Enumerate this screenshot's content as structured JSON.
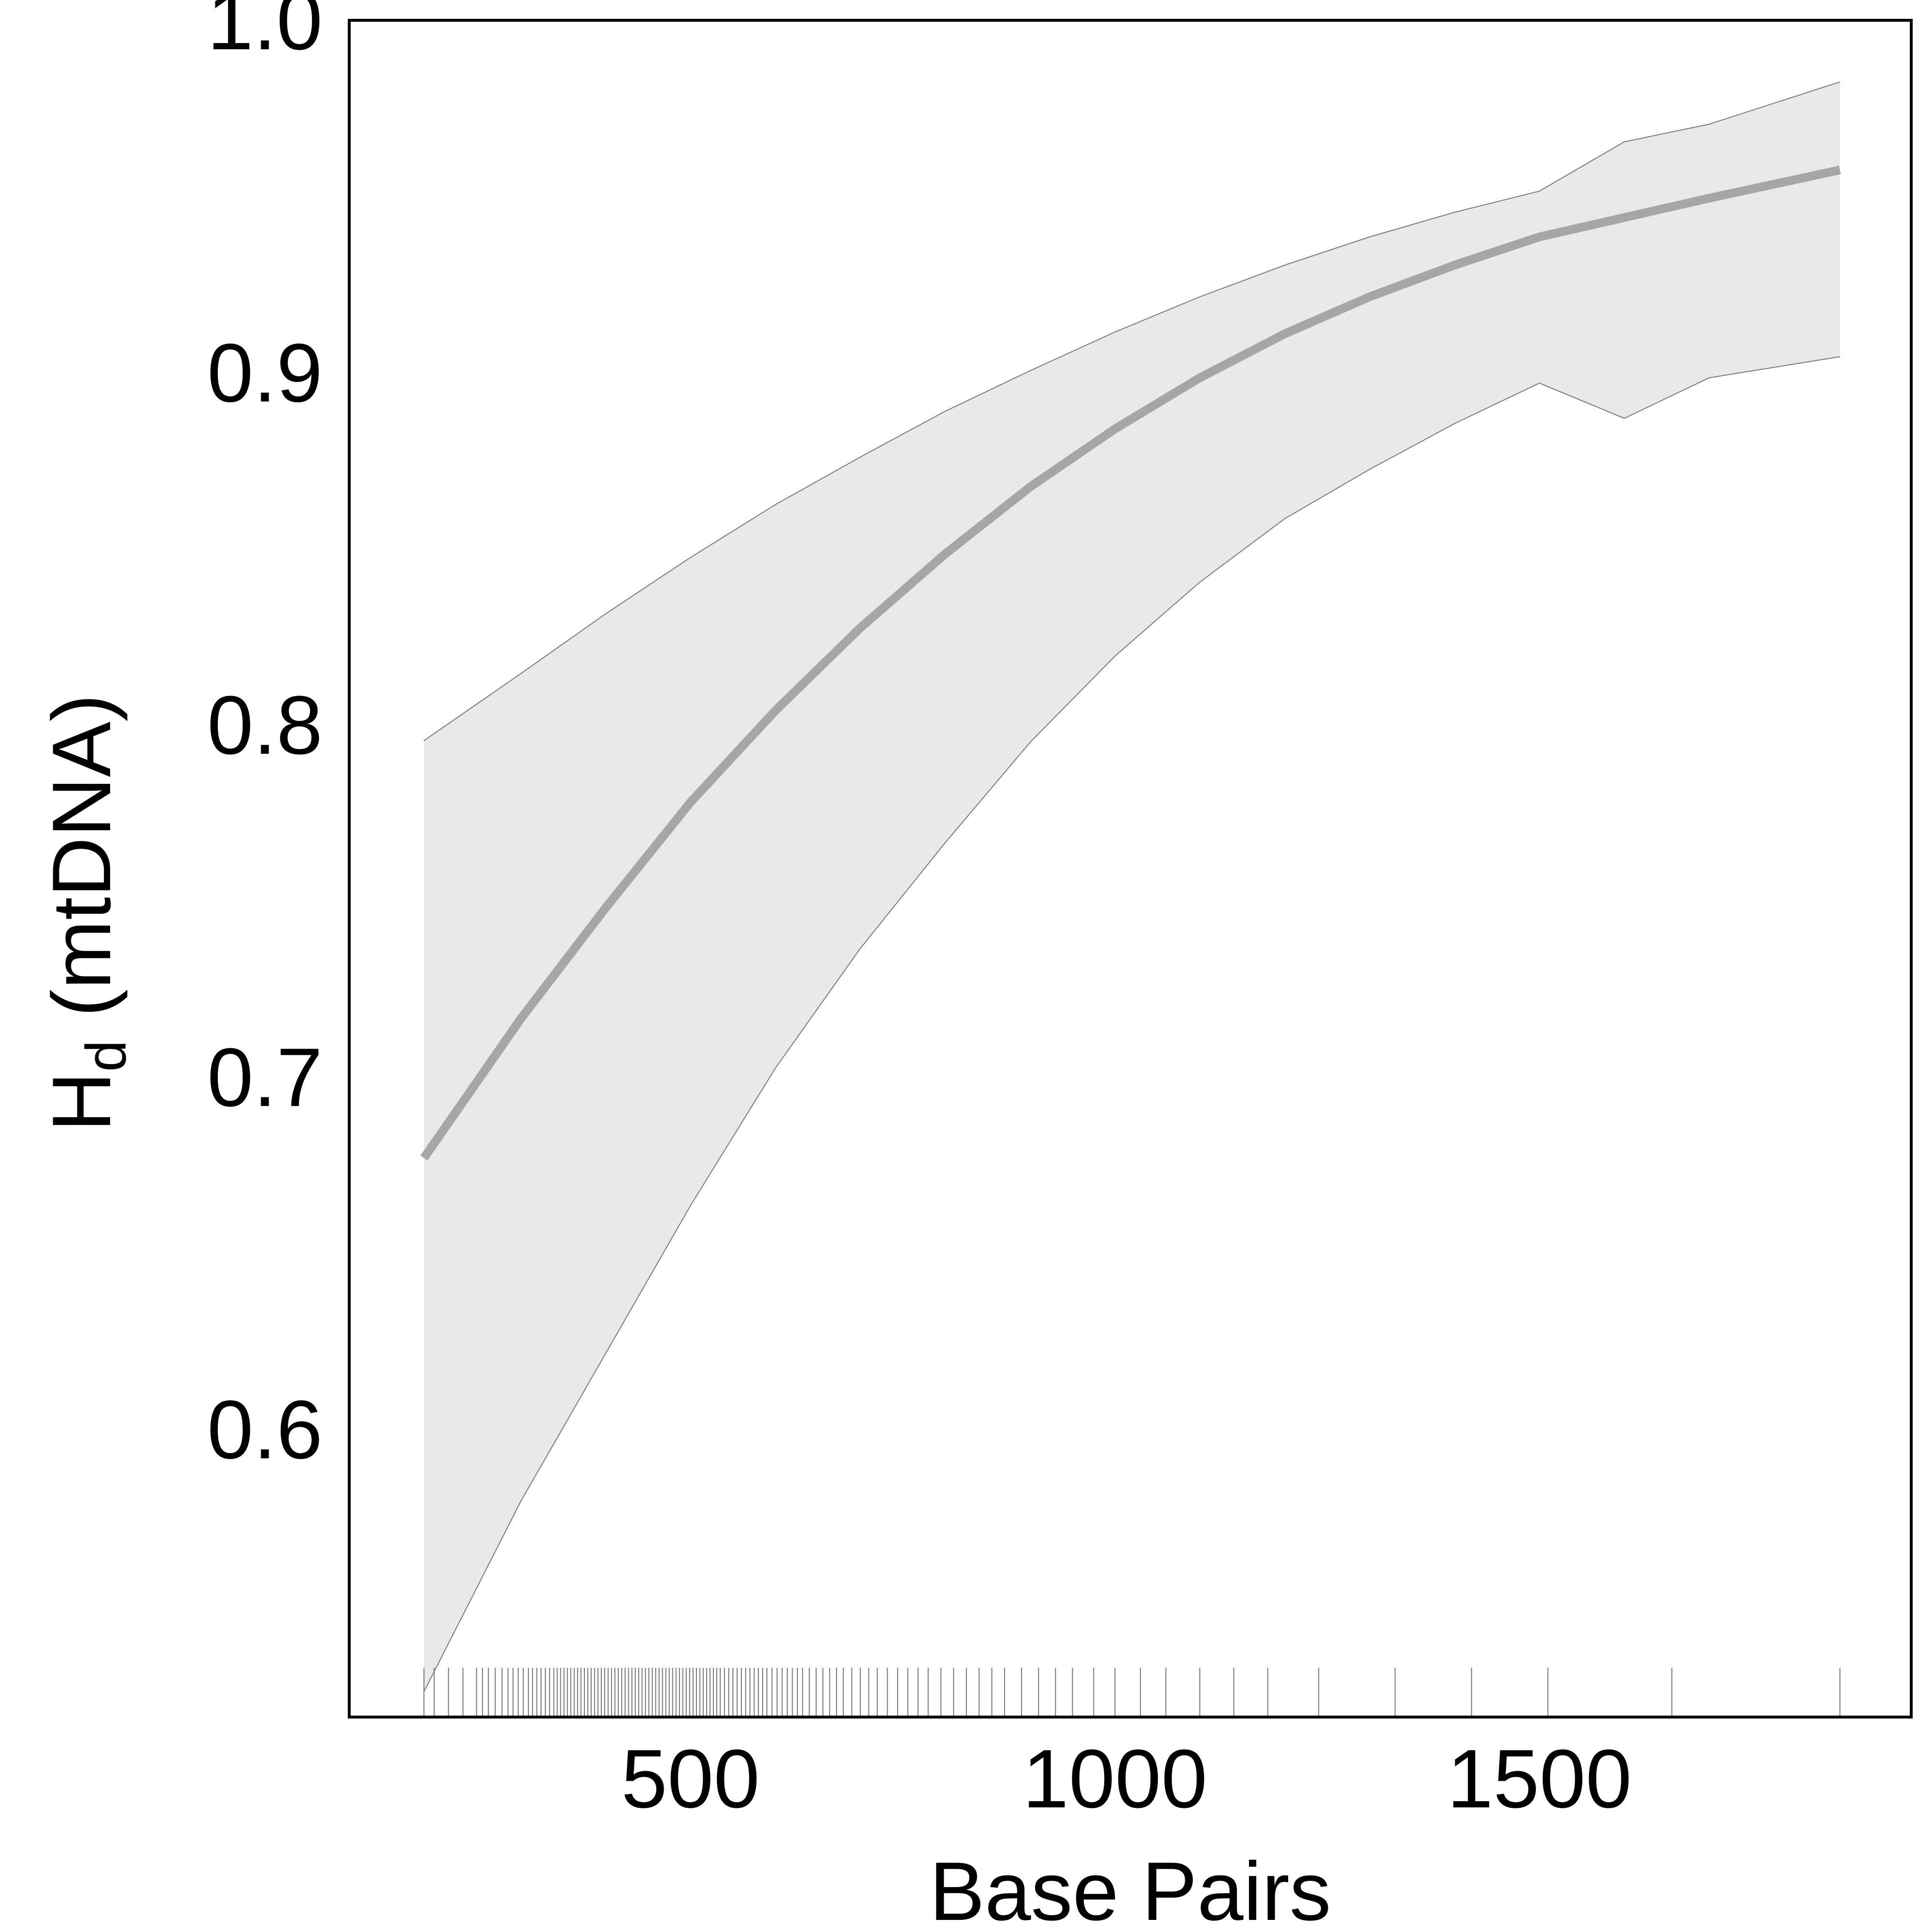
{
  "chart_data": {
    "type": "line",
    "xlabel": "Base Pairs",
    "ylabel_main": "H",
    "ylabel_sub": "d",
    "ylabel_suffix": " (mtDNA)",
    "xlim": [
      98,
      1938
    ],
    "ylim": [
      0.5183,
      1.0
    ],
    "x_ticks": [
      500,
      1000,
      1500
    ],
    "x_tick_labels": [
      "500",
      "1000",
      "1500"
    ],
    "y_ticks": [
      0.6,
      0.7,
      0.8,
      0.9,
      1.0
    ],
    "y_tick_labels": [
      "0.6",
      "0.7",
      "0.8",
      "0.9",
      "1.0"
    ],
    "grid": false,
    "legend": "none",
    "fit": {
      "x": [
        186,
        300,
        400,
        500,
        600,
        700,
        800,
        900,
        1000,
        1100,
        1200,
        1300,
        1400,
        1500,
        1600,
        1700,
        1854
      ],
      "y": [
        0.677,
        0.7165,
        0.748,
        0.778,
        0.804,
        0.8275,
        0.8485,
        0.8675,
        0.884,
        0.8985,
        0.911,
        0.9215,
        0.9305,
        0.9385,
        0.944,
        0.9495,
        0.9575
      ]
    },
    "ci_upper": {
      "x": [
        186,
        300,
        400,
        500,
        600,
        700,
        800,
        900,
        1000,
        1100,
        1200,
        1300,
        1400,
        1500,
        1600,
        1700,
        1854
      ],
      "y": [
        0.7955,
        0.8145,
        0.8315,
        0.8475,
        0.8625,
        0.876,
        0.889,
        0.9005,
        0.9115,
        0.9215,
        0.9305,
        0.9385,
        0.9455,
        0.9515,
        0.9655,
        0.9705,
        0.9825
      ]
    },
    "ci_lower": {
      "x": [
        186,
        300,
        400,
        500,
        600,
        700,
        800,
        900,
        1000,
        1100,
        1200,
        1300,
        1400,
        1500,
        1600,
        1700,
        1854
      ],
      "y": [
        0.5255,
        0.5795,
        0.6215,
        0.6635,
        0.7025,
        0.7365,
        0.7665,
        0.795,
        0.8195,
        0.8405,
        0.8585,
        0.8725,
        0.8855,
        0.897,
        0.887,
        0.8985,
        0.9045
      ]
    },
    "rug_x": [
      186,
      198,
      215,
      232,
      248,
      255,
      262,
      270,
      278,
      285,
      291,
      297,
      303,
      309,
      314,
      319,
      324,
      329,
      334,
      339,
      343,
      347,
      351,
      355,
      359,
      363,
      367,
      371,
      375,
      379,
      383,
      387,
      391,
      395,
      399,
      403,
      407,
      411,
      415,
      419,
      423,
      427,
      431,
      435,
      439,
      443,
      447,
      451,
      455,
      459,
      463,
      467,
      471,
      475,
      479,
      483,
      487,
      491,
      495,
      499,
      503,
      507,
      511,
      515,
      519,
      523,
      527,
      531,
      535,
      540,
      545,
      550,
      555,
      560,
      565,
      570,
      575,
      580,
      585,
      590,
      596,
      602,
      608,
      614,
      620,
      626,
      632,
      640,
      648,
      656,
      664,
      672,
      680,
      690,
      700,
      710,
      720,
      732,
      744,
      756,
      768,
      780,
      795,
      810,
      825,
      840,
      855,
      870,
      890,
      910,
      930,
      950,
      975,
      1000,
      1030,
      1060,
      1100,
      1140,
      1180,
      1240,
      1330,
      1420,
      1510,
      1656,
      1854
    ]
  }
}
